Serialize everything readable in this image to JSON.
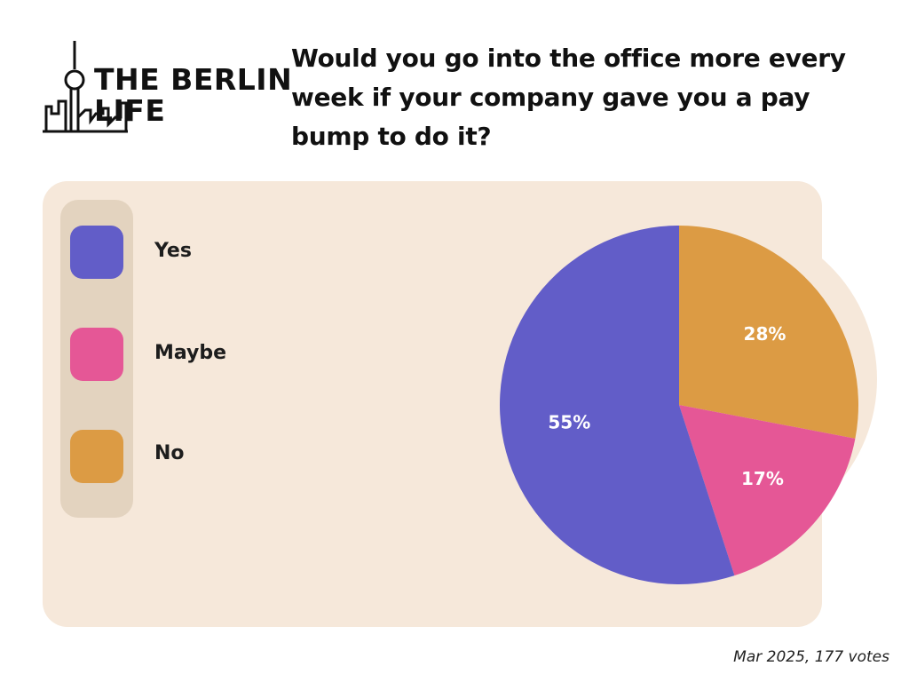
{
  "logo": {
    "line1": "THE BERLIN",
    "line2": "LIFE"
  },
  "chart_data": {
    "type": "pie",
    "title": "Would you go into the office more every week if your company gave you a pay bump to do it?",
    "categories": [
      "Yes",
      "Maybe",
      "No"
    ],
    "values": [
      55,
      17,
      28
    ],
    "labels": [
      "55%",
      "17%",
      "28%"
    ],
    "colors": [
      "#625dc8",
      "#e55796",
      "#dc9b44"
    ],
    "legend_placement": "left"
  },
  "footer": {
    "note": "Mar 2025, 177 votes"
  }
}
